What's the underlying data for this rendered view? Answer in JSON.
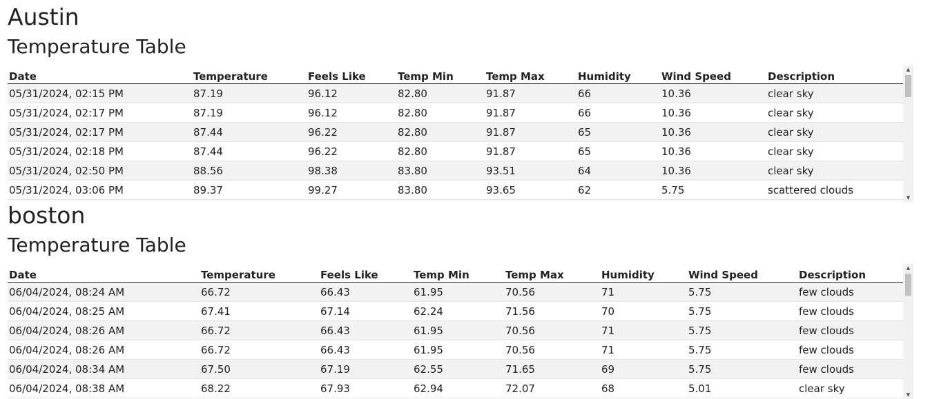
{
  "columns": [
    "Date",
    "Temperature",
    "Feels Like",
    "Temp Min",
    "Temp Max",
    "Humidity",
    "Wind Speed",
    "Description"
  ],
  "table_title": "Temperature Table",
  "icons": {
    "scroll_up": "scroll-up-arrow-icon",
    "scroll_down": "scroll-down-arrow-icon"
  },
  "cities": [
    {
      "name": "Austin",
      "rows": [
        [
          "05/31/2024, 02:15 PM",
          "87.19",
          "96.12",
          "82.80",
          "91.87",
          "66",
          "10.36",
          "clear sky"
        ],
        [
          "05/31/2024, 02:17 PM",
          "87.19",
          "96.12",
          "82.80",
          "91.87",
          "66",
          "10.36",
          "clear sky"
        ],
        [
          "05/31/2024, 02:17 PM",
          "87.44",
          "96.22",
          "82.80",
          "91.87",
          "65",
          "10.36",
          "clear sky"
        ],
        [
          "05/31/2024, 02:18 PM",
          "87.44",
          "96.22",
          "82.80",
          "91.87",
          "65",
          "10.36",
          "clear sky"
        ],
        [
          "05/31/2024, 02:50 PM",
          "88.56",
          "98.38",
          "83.80",
          "93.51",
          "64",
          "10.36",
          "clear sky"
        ],
        [
          "05/31/2024, 03:06 PM",
          "89.37",
          "99.27",
          "83.80",
          "93.65",
          "62",
          "5.75",
          "scattered clouds"
        ]
      ]
    },
    {
      "name": "boston",
      "rows": [
        [
          "06/04/2024, 08:24 AM",
          "66.72",
          "66.43",
          "61.95",
          "70.56",
          "71",
          "5.75",
          "few clouds"
        ],
        [
          "06/04/2024, 08:25 AM",
          "67.41",
          "67.14",
          "62.24",
          "71.56",
          "70",
          "5.75",
          "few clouds"
        ],
        [
          "06/04/2024, 08:26 AM",
          "66.72",
          "66.43",
          "61.95",
          "70.56",
          "71",
          "5.75",
          "few clouds"
        ],
        [
          "06/04/2024, 08:26 AM",
          "66.72",
          "66.43",
          "61.95",
          "70.56",
          "71",
          "5.75",
          "few clouds"
        ],
        [
          "06/04/2024, 08:34 AM",
          "67.50",
          "67.19",
          "62.55",
          "71.65",
          "69",
          "5.75",
          "few clouds"
        ],
        [
          "06/04/2024, 08:38 AM",
          "68.22",
          "67.93",
          "62.94",
          "72.07",
          "68",
          "5.01",
          "clear sky"
        ]
      ]
    }
  ]
}
